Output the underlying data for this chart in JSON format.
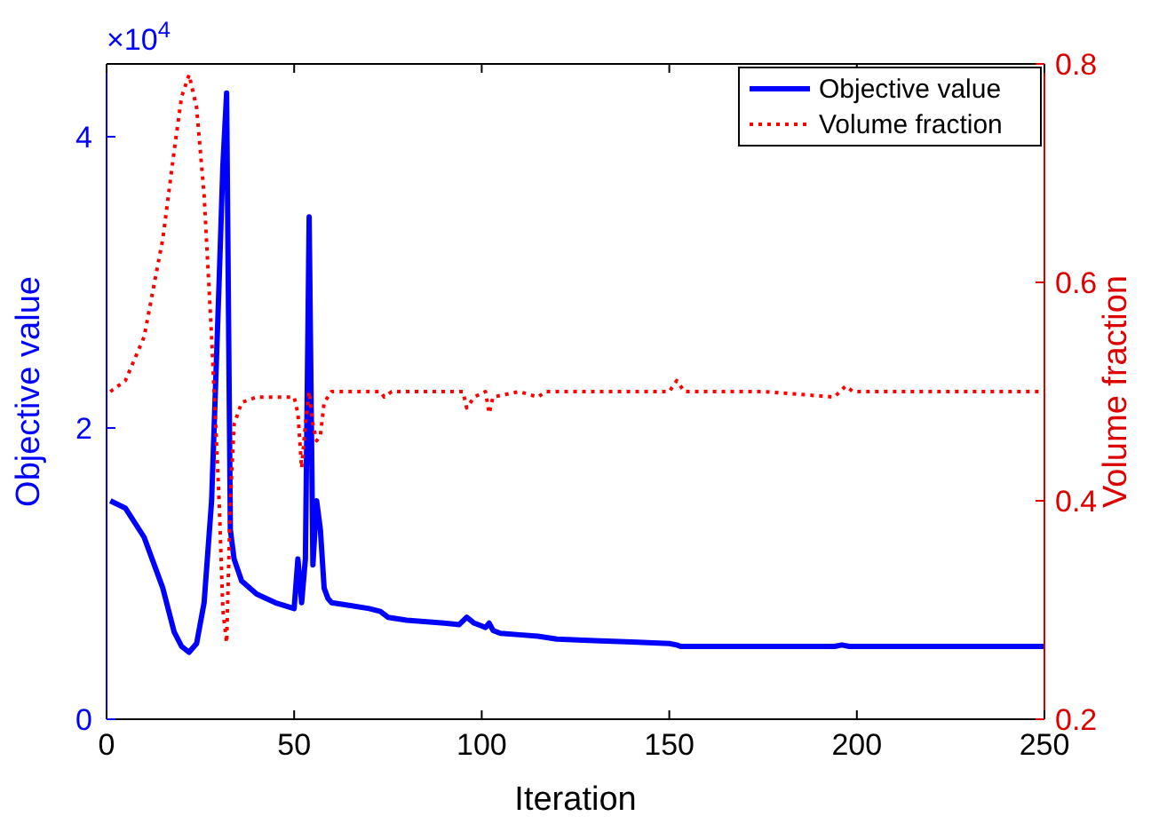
{
  "chart_data": {
    "type": "line",
    "xlabel": "Iteration",
    "ylabel": "Objective value",
    "y2label": "Volume fraction",
    "annotations": [
      "×10$^{4}$"
    ],
    "xlim": [
      0,
      250
    ],
    "xticks": [
      0,
      50,
      100,
      150,
      200,
      250
    ],
    "ylim": [
      0,
      4.5
    ],
    "yticks": [
      0,
      2,
      4
    ],
    "y2lim": [
      0.2,
      0.8
    ],
    "y2ticks": [
      0.2,
      0.4,
      0.6,
      0.8
    ],
    "legend": "top right",
    "grid": false,
    "series": [
      {
        "name": "Objective value",
        "color": "#0000ff",
        "line_style": "solid",
        "x": [
          1,
          5,
          10,
          15,
          18,
          20,
          22,
          24,
          26,
          28,
          30,
          31,
          32,
          33,
          34,
          36,
          40,
          45,
          50,
          51,
          52,
          53,
          54,
          55,
          56,
          57,
          58,
          59,
          60,
          65,
          70,
          73,
          74,
          75,
          80,
          90,
          94,
          96,
          98,
          100,
          101,
          102,
          103,
          105,
          110,
          115,
          120,
          130,
          140,
          150,
          152,
          153,
          160,
          170,
          180,
          194,
          196,
          198,
          200,
          220,
          250
        ],
        "values": [
          1.5,
          1.45,
          1.25,
          0.9,
          0.6,
          0.5,
          0.46,
          0.52,
          0.8,
          1.5,
          3.0,
          3.8,
          4.3,
          1.3,
          1.1,
          0.95,
          0.86,
          0.8,
          0.76,
          1.1,
          0.8,
          1.1,
          3.45,
          1.06,
          1.5,
          1.3,
          0.9,
          0.83,
          0.8,
          0.78,
          0.76,
          0.74,
          0.72,
          0.7,
          0.68,
          0.66,
          0.65,
          0.7,
          0.66,
          0.64,
          0.63,
          0.66,
          0.61,
          0.59,
          0.58,
          0.57,
          0.55,
          0.54,
          0.53,
          0.52,
          0.51,
          0.5,
          0.5,
          0.5,
          0.5,
          0.5,
          0.51,
          0.5,
          0.5,
          0.5,
          0.5
        ]
      },
      {
        "name": "Volume fraction",
        "color": "#ff0000",
        "axis": "y2",
        "line_style": "dotted",
        "x": [
          1,
          5,
          10,
          15,
          18,
          20,
          22,
          24,
          26,
          28,
          30,
          31,
          32,
          33,
          34,
          36,
          40,
          50,
          51,
          52,
          53,
          54,
          55,
          56,
          57,
          58,
          60,
          73,
          74,
          76,
          95,
          96,
          98,
          101,
          102,
          103,
          110,
          115,
          117,
          150,
          152,
          154,
          175,
          194,
          197,
          199,
          250
        ],
        "values": [
          0.5,
          0.51,
          0.55,
          0.64,
          0.72,
          0.77,
          0.79,
          0.76,
          0.68,
          0.55,
          0.4,
          0.3,
          0.27,
          0.4,
          0.47,
          0.49,
          0.495,
          0.495,
          0.48,
          0.43,
          0.47,
          0.5,
          0.47,
          0.455,
          0.46,
          0.49,
          0.5,
          0.5,
          0.495,
          0.5,
          0.5,
          0.485,
          0.495,
          0.5,
          0.48,
          0.495,
          0.5,
          0.495,
          0.5,
          0.5,
          0.51,
          0.5,
          0.5,
          0.495,
          0.505,
          0.5,
          0.5
        ]
      }
    ]
  }
}
